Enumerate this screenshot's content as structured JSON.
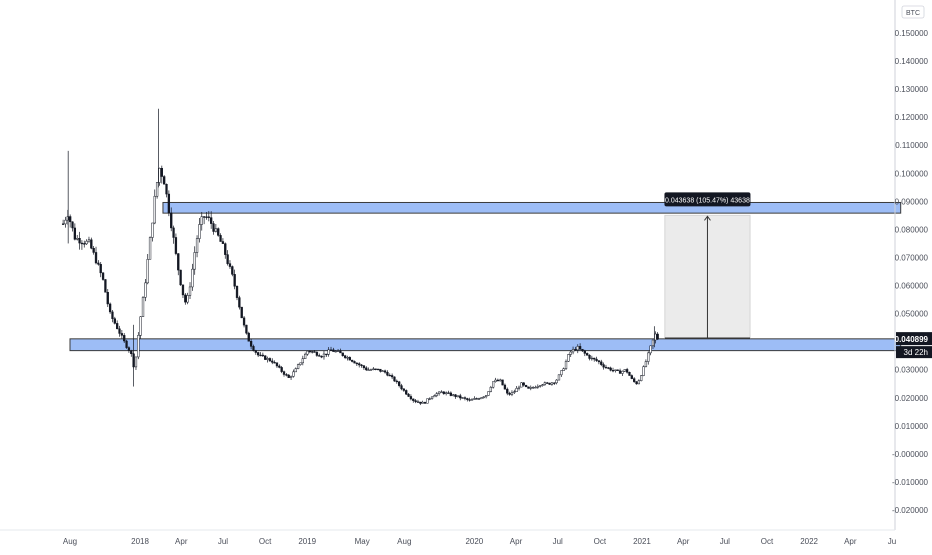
{
  "chart_data": {
    "type": "candlestick",
    "symbol_label": "BTC",
    "ylim": [
      -0.025,
      0.155
    ],
    "y_ticks": [
      {
        "v": 0.15,
        "label": "0.150000"
      },
      {
        "v": 0.14,
        "label": "0.140000"
      },
      {
        "v": 0.13,
        "label": "0.130000"
      },
      {
        "v": 0.12,
        "label": "0.120000"
      },
      {
        "v": 0.11,
        "label": "0.110000"
      },
      {
        "v": 0.1,
        "label": "0.100000"
      },
      {
        "v": 0.09,
        "label": "0.090000"
      },
      {
        "v": 0.08,
        "label": "0.080000"
      },
      {
        "v": 0.07,
        "label": "0.070000"
      },
      {
        "v": 0.06,
        "label": "0.060000"
      },
      {
        "v": 0.05,
        "label": "0.050000"
      },
      {
        "v": 0.03,
        "label": "0.030000"
      },
      {
        "v": 0.02,
        "label": "0.020000"
      },
      {
        "v": 0.01,
        "label": "0.010000"
      },
      {
        "v": 0.0,
        "label": "-0.000000"
      },
      {
        "v": -0.01,
        "label": "-0.010000"
      },
      {
        "v": -0.02,
        "label": "-0.020000"
      }
    ],
    "x_ticks": [
      {
        "label": "Aug",
        "date": "2017-08-01"
      },
      {
        "label": "2018",
        "date": "2018-01-01"
      },
      {
        "label": "Apr",
        "date": "2018-04-01"
      },
      {
        "label": "Jul",
        "date": "2018-07-01"
      },
      {
        "label": "Oct",
        "date": "2018-10-01"
      },
      {
        "label": "2019",
        "date": "2019-01-01"
      },
      {
        "label": "May",
        "date": "2019-05-01"
      },
      {
        "label": "Aug",
        "date": "2019-08-01"
      },
      {
        "label": "2020",
        "date": "2020-01-01"
      },
      {
        "label": "Apr",
        "date": "2020-04-01"
      },
      {
        "label": "Jul",
        "date": "2020-07-01"
      },
      {
        "label": "Oct",
        "date": "2020-10-01"
      },
      {
        "label": "2021",
        "date": "2021-01-01"
      },
      {
        "label": "Apr",
        "date": "2021-04-01"
      },
      {
        "label": "Jul",
        "date": "2021-07-01"
      },
      {
        "label": "Oct",
        "date": "2021-10-01"
      },
      {
        "label": "2022",
        "date": "2022-01-01"
      },
      {
        "label": "Apr",
        "date": "2022-04-01"
      },
      {
        "label": "Ju",
        "date": "2022-07-01"
      }
    ],
    "price_path": [
      [
        "2017-07-15",
        0.082
      ],
      [
        "2017-07-25",
        0.086
      ],
      [
        "2017-08-10",
        0.077
      ],
      [
        "2017-08-25",
        0.076
      ],
      [
        "2017-09-10",
        0.075
      ],
      [
        "2017-09-25",
        0.069
      ],
      [
        "2017-10-10",
        0.062
      ],
      [
        "2017-10-25",
        0.05
      ],
      [
        "2017-11-10",
        0.045
      ],
      [
        "2017-11-25",
        0.04
      ],
      [
        "2017-12-10",
        0.036
      ],
      [
        "2017-12-18",
        0.03
      ],
      [
        "2017-12-28",
        0.045
      ],
      [
        "2018-01-08",
        0.058
      ],
      [
        "2018-01-20",
        0.075
      ],
      [
        "2018-02-01",
        0.092
      ],
      [
        "2018-02-10",
        0.102
      ],
      [
        "2018-02-20",
        0.098
      ],
      [
        "2018-03-01",
        0.089
      ],
      [
        "2018-03-10",
        0.08
      ],
      [
        "2018-03-20",
        0.069
      ],
      [
        "2018-04-01",
        0.058
      ],
      [
        "2018-04-10",
        0.053
      ],
      [
        "2018-04-20",
        0.062
      ],
      [
        "2018-05-01",
        0.075
      ],
      [
        "2018-05-10",
        0.082
      ],
      [
        "2018-05-20",
        0.085
      ],
      [
        "2018-06-01",
        0.083
      ],
      [
        "2018-06-10",
        0.08
      ],
      [
        "2018-06-20",
        0.077
      ],
      [
        "2018-07-01",
        0.073
      ],
      [
        "2018-07-10",
        0.068
      ],
      [
        "2018-07-20",
        0.063
      ],
      [
        "2018-08-01",
        0.055
      ],
      [
        "2018-08-10",
        0.048
      ],
      [
        "2018-08-20",
        0.042
      ],
      [
        "2018-09-01",
        0.038
      ],
      [
        "2018-09-15",
        0.035
      ],
      [
        "2018-10-01",
        0.034
      ],
      [
        "2018-10-15",
        0.033
      ],
      [
        "2018-11-01",
        0.03
      ],
      [
        "2018-11-20",
        0.027
      ],
      [
        "2018-12-05",
        0.03
      ],
      [
        "2018-12-20",
        0.034
      ],
      [
        "2019-01-01",
        0.037
      ],
      [
        "2019-01-15",
        0.036
      ],
      [
        "2019-02-01",
        0.035
      ],
      [
        "2019-02-20",
        0.037
      ],
      [
        "2019-03-10",
        0.036
      ],
      [
        "2019-04-01",
        0.034
      ],
      [
        "2019-04-20",
        0.032
      ],
      [
        "2019-05-10",
        0.03
      ],
      [
        "2019-06-01",
        0.03
      ],
      [
        "2019-06-20",
        0.029
      ],
      [
        "2019-07-10",
        0.026
      ],
      [
        "2019-08-01",
        0.022
      ],
      [
        "2019-08-20",
        0.019
      ],
      [
        "2019-09-10",
        0.018
      ],
      [
        "2019-10-01",
        0.021
      ],
      [
        "2019-10-20",
        0.022
      ],
      [
        "2019-11-10",
        0.021
      ],
      [
        "2019-12-01",
        0.02
      ],
      [
        "2019-12-20",
        0.019
      ],
      [
        "2020-01-10",
        0.02
      ],
      [
        "2020-01-25",
        0.021
      ],
      [
        "2020-02-10",
        0.026
      ],
      [
        "2020-02-25",
        0.026
      ],
      [
        "2020-03-12",
        0.021
      ],
      [
        "2020-03-25",
        0.022
      ],
      [
        "2020-04-10",
        0.025
      ],
      [
        "2020-04-25",
        0.023
      ],
      [
        "2020-05-10",
        0.024
      ],
      [
        "2020-05-25",
        0.025
      ],
      [
        "2020-06-10",
        0.025
      ],
      [
        "2020-06-25",
        0.026
      ],
      [
        "2020-07-10",
        0.03
      ],
      [
        "2020-07-25",
        0.036
      ],
      [
        "2020-08-10",
        0.038
      ],
      [
        "2020-08-25",
        0.036
      ],
      [
        "2020-09-10",
        0.034
      ],
      [
        "2020-09-25",
        0.033
      ],
      [
        "2020-10-10",
        0.031
      ],
      [
        "2020-10-25",
        0.03
      ],
      [
        "2020-11-10",
        0.029
      ],
      [
        "2020-11-25",
        0.03
      ],
      [
        "2020-12-10",
        0.026
      ],
      [
        "2020-12-20",
        0.025
      ],
      [
        "2020-12-30",
        0.029
      ],
      [
        "2021-01-10",
        0.034
      ],
      [
        "2021-01-20",
        0.039
      ],
      [
        "2021-01-28",
        0.0425
      ],
      [
        "2021-02-03",
        0.040899
      ]
    ],
    "zones": [
      {
        "name": "upper-resistance-zone",
        "from": "2018-02-20",
        "to": "2022-07-20",
        "low": 0.0858,
        "high": 0.0896
      },
      {
        "name": "lower-support-zone",
        "from": "2017-08-01",
        "to": "2022-07-20",
        "low": 0.0368,
        "high": 0.041
      }
    ],
    "measure": {
      "from": "2021-02-20",
      "to": "2021-08-25",
      "base": 0.0413,
      "top": 0.085,
      "label": "0.043638 (105.47%) 43638"
    },
    "last_price": {
      "value": 0.040899,
      "label": "0.040899",
      "countdown": "3d 22h"
    },
    "colors": {
      "zone_fill": "#9dbdf6",
      "zone_stroke": "#3a3a3a",
      "measure_fill": "#ebebeb",
      "candle": "#131722",
      "axis_text": "#4a4e59",
      "last_bg": "#131722",
      "background": "#ffffff"
    }
  }
}
